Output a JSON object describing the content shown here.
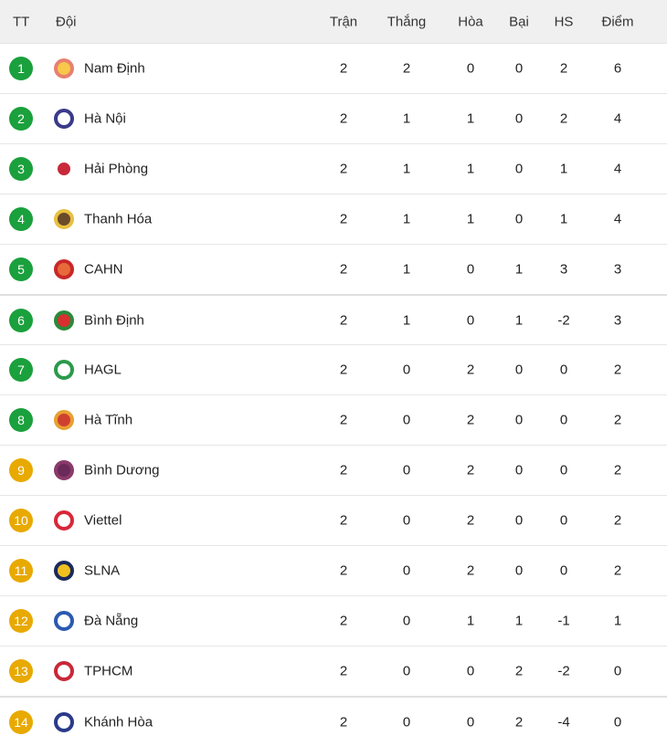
{
  "headers": {
    "rank": "TT",
    "team": "Đội",
    "played": "Trận",
    "won": "Thắng",
    "drawn": "Hòa",
    "lost": "Bại",
    "gd": "HS",
    "points": "Điểm"
  },
  "colors": {
    "top": "#1aa03c",
    "rest": "#e8a900"
  },
  "rows": [
    {
      "rank": "1",
      "team": "Nam Định",
      "played": "2",
      "won": "2",
      "drawn": "0",
      "lost": "0",
      "gd": "2",
      "points": "6",
      "logo": [
        "#f7c84a",
        "#e88070"
      ]
    },
    {
      "rank": "2",
      "team": "Hà Nội",
      "played": "2",
      "won": "1",
      "drawn": "1",
      "lost": "0",
      "gd": "2",
      "points": "4",
      "logo": [
        "#ffffff",
        "#3a3a8a"
      ]
    },
    {
      "rank": "3",
      "team": "Hải Phòng",
      "played": "2",
      "won": "1",
      "drawn": "1",
      "lost": "0",
      "gd": "1",
      "points": "4",
      "logo": [
        "#c8283a",
        "#ffffff"
      ]
    },
    {
      "rank": "4",
      "team": "Thanh Hóa",
      "played": "2",
      "won": "1",
      "drawn": "1",
      "lost": "0",
      "gd": "1",
      "points": "4",
      "logo": [
        "#6b4a2a",
        "#e8c040"
      ]
    },
    {
      "rank": "5",
      "team": "CAHN",
      "played": "2",
      "won": "1",
      "drawn": "0",
      "lost": "1",
      "gd": "3",
      "points": "3",
      "logo": [
        "#e86a3a",
        "#c82828"
      ]
    },
    {
      "rank": "6",
      "team": "Bình Định",
      "played": "2",
      "won": "1",
      "drawn": "0",
      "lost": "1",
      "gd": "-2",
      "points": "3",
      "logo": [
        "#d83030",
        "#2a8a3a"
      ]
    },
    {
      "rank": "7",
      "team": "HAGL",
      "played": "2",
      "won": "0",
      "drawn": "2",
      "lost": "0",
      "gd": "0",
      "points": "2",
      "logo": [
        "#ffffff",
        "#2a9a4a"
      ]
    },
    {
      "rank": "8",
      "team": "Hà Tĩnh",
      "played": "2",
      "won": "0",
      "drawn": "2",
      "lost": "0",
      "gd": "0",
      "points": "2",
      "logo": [
        "#d04030",
        "#e8a030"
      ]
    },
    {
      "rank": "9",
      "team": "Bình Dương",
      "played": "2",
      "won": "0",
      "drawn": "2",
      "lost": "0",
      "gd": "0",
      "points": "2",
      "logo": [
        "#6a2a5a",
        "#8a3a6a"
      ]
    },
    {
      "rank": "10",
      "team": "Viettel",
      "played": "2",
      "won": "0",
      "drawn": "2",
      "lost": "0",
      "gd": "0",
      "points": "2",
      "logo": [
        "#ffffff",
        "#d82838"
      ]
    },
    {
      "rank": "11",
      "team": "SLNA",
      "played": "2",
      "won": "0",
      "drawn": "2",
      "lost": "0",
      "gd": "0",
      "points": "2",
      "logo": [
        "#f0c020",
        "#1a2a5a"
      ]
    },
    {
      "rank": "12",
      "team": "Đà Nẵng",
      "played": "2",
      "won": "0",
      "drawn": "1",
      "lost": "1",
      "gd": "-1",
      "points": "1",
      "logo": [
        "#ffffff",
        "#2a5ab0"
      ]
    },
    {
      "rank": "13",
      "team": "TPHCM",
      "played": "2",
      "won": "0",
      "drawn": "0",
      "lost": "2",
      "gd": "-2",
      "points": "0",
      "logo": [
        "#ffffff",
        "#c82838"
      ]
    },
    {
      "rank": "14",
      "team": "Khánh Hòa",
      "played": "2",
      "won": "0",
      "drawn": "0",
      "lost": "2",
      "gd": "-4",
      "points": "0",
      "logo": [
        "#ffffff",
        "#2a3a8a"
      ]
    }
  ]
}
